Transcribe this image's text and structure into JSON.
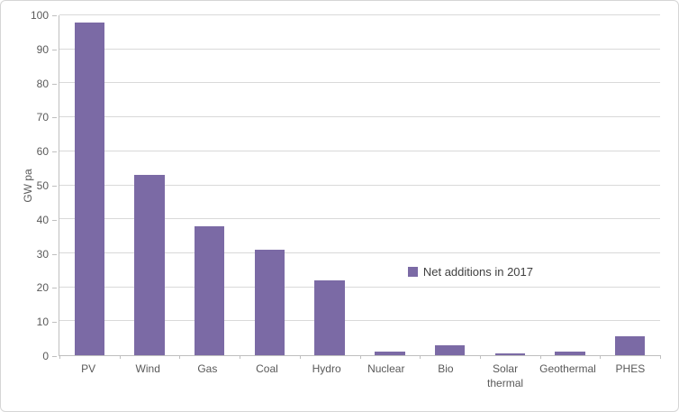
{
  "chart_data": {
    "type": "bar",
    "title": "",
    "xlabel": "",
    "ylabel": "GW pa",
    "ylim": [
      0,
      100
    ],
    "ytick_step": 10,
    "grid": true,
    "legend": {
      "label": "Net additions in 2017",
      "position": "inside-center-right"
    },
    "bar_color": "#7b6aa5",
    "axis_color": "#bfbfbf",
    "gridline_color": "#d9d9d9",
    "text_color": "#595959",
    "categories": [
      "PV",
      "Wind",
      "Gas",
      "Coal",
      "Hydro",
      "Nuclear",
      "Bio",
      "Solar thermal",
      "Geothermal",
      "PHES"
    ],
    "values": [
      98,
      53,
      38,
      31,
      22,
      1,
      3,
      0.5,
      1,
      5.5
    ]
  }
}
